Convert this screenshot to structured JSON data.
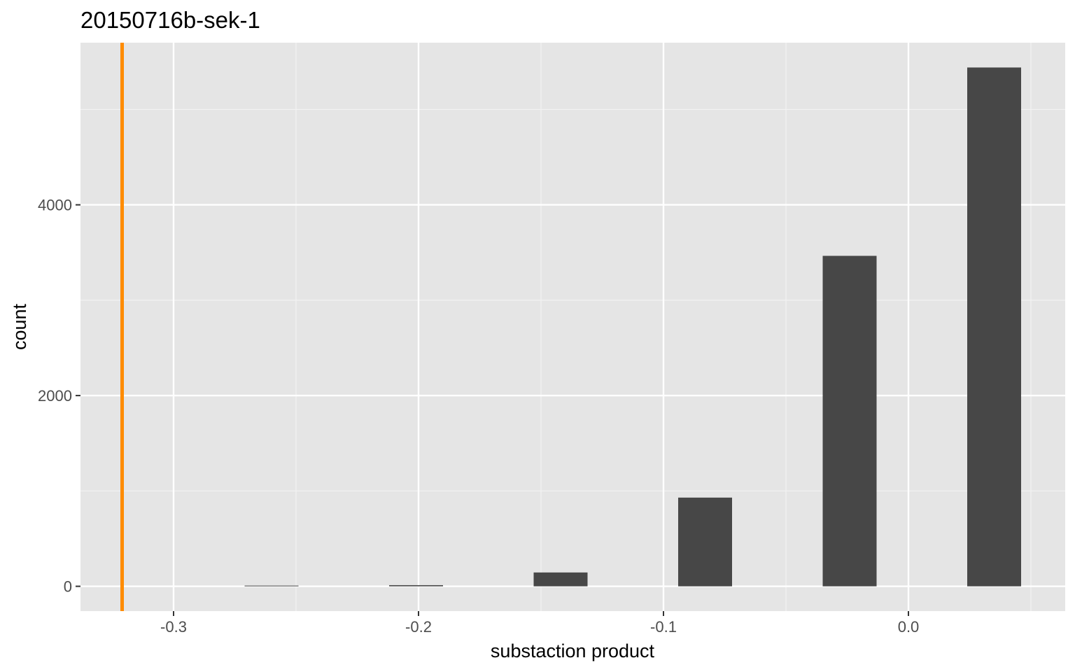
{
  "chart_data": {
    "type": "bar",
    "title": "20150716b-sek-1",
    "xlabel": "substaction product",
    "ylabel": "count",
    "xlim": [
      -0.338,
      0.064
    ],
    "ylim": [
      -260,
      5700
    ],
    "x_ticks": [
      -0.3,
      -0.2,
      -0.1,
      0.0
    ],
    "x_tick_labels": [
      "-0.3",
      "-0.2",
      "-0.1",
      "0.0"
    ],
    "y_ticks": [
      0,
      2000,
      4000
    ],
    "y_tick_labels": [
      "0",
      "2000",
      "4000"
    ],
    "bar_width": 0.022,
    "bars": [
      {
        "x": -0.26,
        "value": 3
      },
      {
        "x": -0.201,
        "value": 12
      },
      {
        "x": -0.142,
        "value": 145
      },
      {
        "x": -0.083,
        "value": 930
      },
      {
        "x": -0.024,
        "value": 3465
      },
      {
        "x": 0.035,
        "value": 5440
      }
    ],
    "reference_line": {
      "x": -0.321,
      "color": "#FF8C00"
    },
    "bar_color": "#474747",
    "panel_color": "#E5E5E5",
    "grid": true,
    "legend": "none"
  }
}
